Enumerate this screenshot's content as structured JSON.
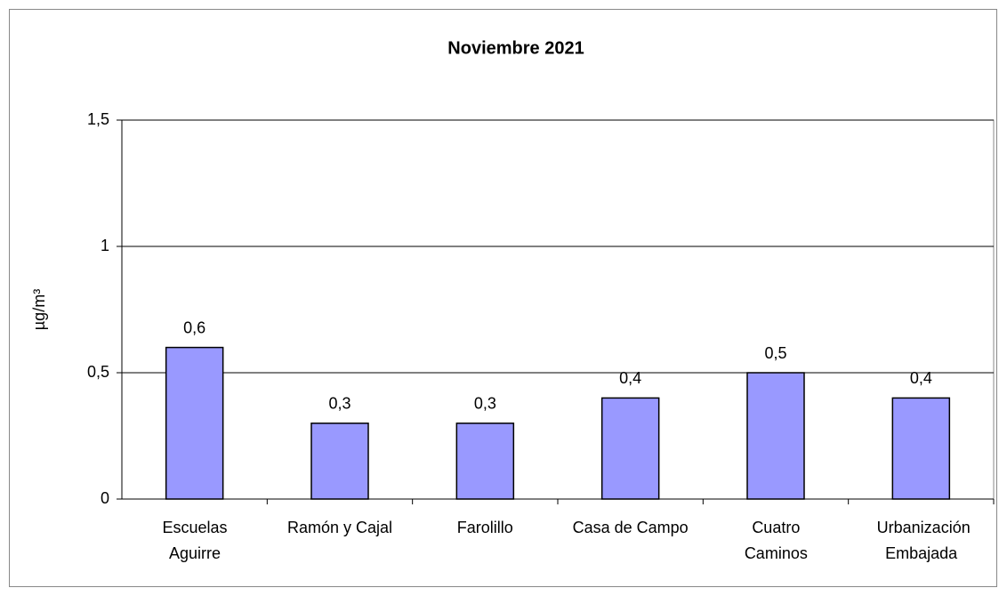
{
  "chart_data": {
    "type": "bar",
    "title": "Noviembre 2021",
    "y_label": "µg/m³",
    "categories": [
      "Escuelas Aguirre",
      "Ramón y Cajal",
      "Farolillo",
      "Casa de Campo",
      "Cuatro Caminos",
      "Urbanización Embajada"
    ],
    "values": [
      0.6,
      0.3,
      0.3,
      0.4,
      0.5,
      0.4
    ],
    "value_labels": [
      "0,6",
      "0,3",
      "0,3",
      "0,4",
      "0,5",
      "0,4"
    ],
    "color": "#9999ff",
    "ylim": [
      0,
      1.5
    ],
    "yticks": [
      0,
      {
        "value": 0.5,
        "label": "0,5"
      },
      1,
      {
        "value": 1.5,
        "label": "1,5"
      }
    ],
    "grid": true
  }
}
